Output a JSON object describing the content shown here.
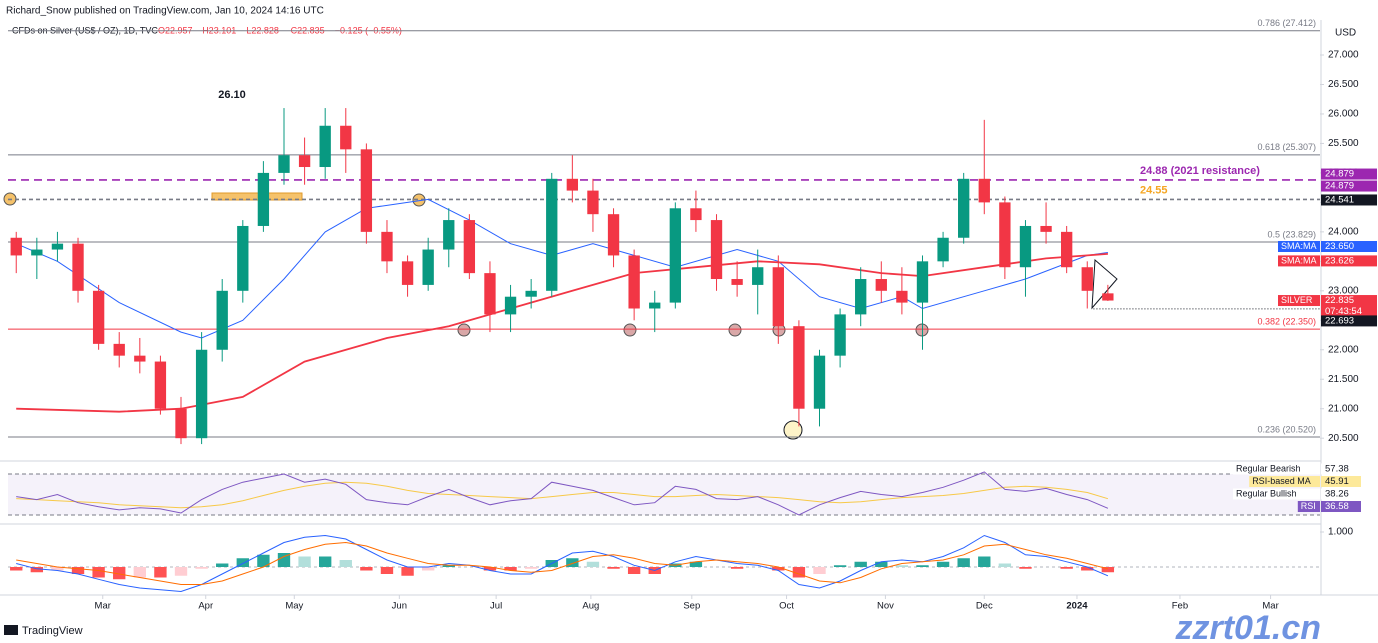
{
  "chart_data": {
    "type": "candlestick",
    "header": {
      "publisher": "Richard_Snow published on TradingView.com, Jan 10, 2024 14:16 UTC",
      "symbol": "CFDs on Silver (US$ / OZ), 1D, TVC",
      "ohlc": [
        "O22.957",
        "H23.101",
        "L22.828",
        "C22.835",
        "−0.125 (−0.55%)"
      ]
    },
    "currency": "USD",
    "footer": "TradingView",
    "watermark": "zzrt01.cn",
    "annotation": "26.10",
    "xlim": [
      -0.4,
      63.3
    ],
    "xticks": [
      {
        "value": 4.2,
        "label": "Mar"
      },
      {
        "value": 9.2,
        "label": "Apr"
      },
      {
        "value": 13.5,
        "label": "May"
      },
      {
        "value": 18.6,
        "label": "Jun"
      },
      {
        "value": 23.3,
        "label": "Jul"
      },
      {
        "value": 27.9,
        "label": "Aug"
      },
      {
        "value": 32.8,
        "label": "Sep"
      },
      {
        "value": 37.4,
        "label": "Oct"
      },
      {
        "value": 42.2,
        "label": "Nov"
      },
      {
        "value": 47.0,
        "label": "Dec"
      },
      {
        "value": 51.5,
        "label": "2024"
      },
      {
        "value": 56.5,
        "label": "Feb"
      },
      {
        "value": 60.9,
        "label": "Mar"
      }
    ],
    "ylim": [
      20.13,
      27.56
    ],
    "yticks": [
      {
        "value": 20.5,
        "label": "20.500"
      },
      {
        "value": 21,
        "label": "21.000"
      },
      {
        "value": 21.5,
        "label": "21.500"
      },
      {
        "value": 22,
        "label": "22.000"
      },
      {
        "value": 22.5,
        "label": "22.500"
      },
      {
        "value": 23,
        "label": "23.000"
      },
      {
        "value": 23.5,
        "label": "23.500"
      },
      {
        "value": 24,
        "label": "24.000"
      },
      {
        "value": 24.5,
        "label": "24.500"
      },
      {
        "value": 25,
        "label": "25.000"
      },
      {
        "value": 25.5,
        "label": "25.500"
      },
      {
        "value": 26,
        "label": "26.000"
      },
      {
        "value": 26.5,
        "label": "26.500"
      },
      {
        "value": 27,
        "label": "27.000"
      }
    ],
    "up_color": "#089981",
    "down_color": "#f23645",
    "open": [
      23.9,
      23.6,
      23.7,
      23.8,
      23.0,
      22.1,
      21.9,
      21.8,
      21.0,
      20.5,
      22.0,
      23.0,
      24.1,
      25.0,
      25.3,
      25.1,
      25.8,
      25.4,
      24.0,
      23.5,
      23.1,
      23.7,
      24.2,
      23.3,
      22.6,
      22.9,
      23.0,
      24.9,
      24.7,
      24.3,
      23.6,
      22.7,
      22.8,
      24.4,
      24.2,
      23.2,
      23.1,
      23.4,
      22.4,
      21.0,
      21.9,
      22.6,
      23.2,
      23.0,
      22.8,
      23.5,
      23.9,
      24.9,
      24.5,
      23.4,
      24.1,
      24.0,
      23.4,
      22.957
    ],
    "high": [
      24.0,
      23.9,
      24.0,
      23.9,
      23.1,
      22.3,
      22.2,
      21.9,
      21.2,
      22.3,
      23.2,
      24.2,
      25.2,
      26.1,
      25.6,
      26.1,
      26.1,
      25.5,
      24.2,
      23.6,
      23.9,
      24.4,
      24.3,
      23.5,
      23.1,
      23.2,
      25.0,
      25.3,
      24.9,
      24.4,
      23.7,
      23.0,
      24.5,
      24.7,
      24.3,
      23.5,
      23.7,
      23.6,
      22.5,
      22.0,
      22.7,
      23.4,
      23.5,
      23.4,
      23.6,
      24.0,
      25.0,
      25.9,
      24.6,
      24.2,
      24.5,
      24.1,
      23.5,
      23.101
    ],
    "low": [
      23.3,
      23.2,
      23.5,
      22.8,
      22.0,
      21.7,
      21.6,
      20.9,
      20.4,
      20.4,
      21.8,
      22.8,
      24.0,
      24.8,
      24.8,
      24.9,
      25.0,
      23.8,
      23.3,
      22.9,
      23.0,
      23.4,
      23.2,
      22.3,
      22.3,
      22.7,
      22.9,
      24.5,
      24.0,
      23.4,
      22.5,
      22.3,
      22.7,
      24.0,
      23.0,
      22.9,
      22.6,
      22.1,
      20.7,
      20.7,
      21.7,
      22.4,
      22.8,
      22.6,
      22.0,
      23.4,
      23.8,
      24.3,
      23.2,
      22.9,
      23.8,
      23.3,
      22.7,
      22.828
    ],
    "close": [
      23.6,
      23.7,
      23.8,
      23.0,
      22.1,
      21.9,
      21.8,
      21.0,
      20.5,
      22.0,
      23.0,
      24.1,
      25.0,
      25.3,
      25.1,
      25.8,
      25.4,
      24.0,
      23.5,
      23.1,
      23.7,
      24.2,
      23.3,
      22.6,
      22.9,
      23.0,
      24.9,
      24.7,
      24.3,
      23.6,
      22.7,
      22.8,
      24.4,
      24.2,
      23.2,
      23.1,
      23.4,
      22.4,
      21.0,
      21.9,
      22.6,
      23.2,
      23.0,
      22.8,
      23.5,
      23.9,
      24.9,
      24.5,
      23.4,
      24.1,
      24.0,
      23.4,
      23.0,
      22.835
    ],
    "lines": [
      {
        "name": "SMA 50",
        "color": "#2962ff",
        "x": [
          0,
          2,
          5,
          8,
          9,
          11,
          13,
          15,
          17,
          19,
          20,
          22,
          24,
          26,
          28,
          30,
          32,
          35,
          37,
          39,
          41,
          43,
          44,
          47,
          49,
          52,
          53
        ],
        "values": [
          23.8,
          23.5,
          22.8,
          22.3,
          22.2,
          22.5,
          23.2,
          24.0,
          24.4,
          24.5,
          24.55,
          24.2,
          23.8,
          23.6,
          23.8,
          23.6,
          23.4,
          23.7,
          23.5,
          22.9,
          22.7,
          22.9,
          22.7,
          23.0,
          23.2,
          23.6,
          23.65
        ]
      },
      {
        "name": "SMA 200",
        "color": "#f23645",
        "x": [
          0,
          5,
          8,
          11,
          14,
          18,
          21,
          24,
          27,
          30,
          33,
          36,
          39,
          42,
          44,
          47,
          50,
          53
        ],
        "values": [
          21.0,
          20.95,
          21.0,
          21.2,
          21.8,
          22.2,
          22.4,
          22.7,
          23.0,
          23.3,
          23.4,
          23.5,
          23.45,
          23.3,
          23.25,
          23.4,
          23.55,
          23.626
        ]
      }
    ],
    "levels": [
      {
        "value": 27.412,
        "label": "0.786 (27.412)",
        "color": "#787b86",
        "dash": "none"
      },
      {
        "value": 25.307,
        "label": "0.618 (25.307)",
        "color": "#787b86",
        "dash": "none"
      },
      {
        "value": 24.88,
        "label": "24.88 (2021 resistance)",
        "color": "#9c27b0",
        "dash": "8 5",
        "big": true
      },
      {
        "value": 24.55,
        "label": "24.55",
        "color": "#f5a623",
        "dash": "4 3",
        "big": true,
        "line_color": "#787b86"
      },
      {
        "value": 23.829,
        "label": "0.5 (23.829)",
        "color": "#787b86",
        "dash": "none"
      },
      {
        "value": 22.693,
        "label": "22.693",
        "color": "#131722",
        "dash": "1 2",
        "from": 52.3
      },
      {
        "value": 22.35,
        "label": "0.382 (22.350)",
        "color": "#f23645",
        "dash": "none"
      },
      {
        "value": 20.52,
        "label": "0.236 (20.520)",
        "color": "#787b86",
        "dash": "none"
      }
    ],
    "tags": [
      {
        "value": 24.879,
        "label": "24.879",
        "color": "#9c27b0",
        "offset": -6
      },
      {
        "value": 24.879,
        "label": "24.879",
        "color": "#9c27b0",
        "offset": 6
      },
      {
        "value": 24.541,
        "label": "24.541",
        "color": "#131722",
        "offset": 0
      },
      {
        "value": 23.65,
        "title": "SMA:MA",
        "label": "23.650",
        "color": "#2962ff",
        "offset": -6
      },
      {
        "value": 23.626,
        "title": "SMA:MA",
        "label": "23.626",
        "color": "#f23645",
        "offset": 7
      },
      {
        "value": 22.835,
        "title": "SILVER",
        "label": "22.835",
        "sub": "07:43:54",
        "color": "#f23645",
        "offset": 0
      },
      {
        "value": 22.693,
        "label": "22.693",
        "color": "#131722",
        "offset": 12
      }
    ],
    "rsi": {
      "ylim": [
        23.2,
        81.7
      ],
      "bands": [
        70,
        30
      ],
      "values": [
        48,
        45,
        50,
        42,
        38,
        35,
        37,
        36,
        32,
        45,
        55,
        62,
        66,
        70,
        62,
        65,
        60,
        45,
        42,
        40,
        48,
        55,
        47,
        40,
        44,
        46,
        62,
        58,
        54,
        47,
        40,
        42,
        58,
        55,
        46,
        45,
        48,
        40,
        30,
        40,
        47,
        53,
        50,
        48,
        52,
        57,
        64,
        72,
        55,
        53,
        56,
        50,
        45,
        36.58
      ],
      "ma": [
        46,
        45,
        44,
        43,
        42,
        40,
        39,
        38,
        37,
        38,
        40,
        44,
        49,
        54,
        58,
        61,
        62,
        61,
        58,
        54,
        51,
        50,
        49,
        48,
        47,
        46,
        48,
        50,
        52,
        52,
        50,
        48,
        48,
        49,
        50,
        49,
        48,
        47,
        45,
        43,
        42,
        43,
        45,
        47,
        48,
        49,
        51,
        54,
        57,
        58,
        57,
        55,
        52,
        45.91
      ],
      "tags": [
        {
          "title": "Regular Bearish",
          "value": 57.38,
          "label": "57.38",
          "color": "#ffffff"
        },
        {
          "title": "RSI-based MA",
          "value": 45.91,
          "label": "45.91",
          "color": "#fde99a"
        },
        {
          "title": "Regular Bullish",
          "value": 38.26,
          "label": "38.26",
          "color": "#ffffff"
        },
        {
          "title": "RSI",
          "value": 36.58,
          "label": "36.58",
          "color": "#7e57c2"
        }
      ]
    },
    "macd": {
      "ylim": [
        -0.8,
        1.2
      ],
      "yticks": [
        {
          "value": 1,
          "label": "1.000"
        }
      ],
      "histogram": [
        -0.1,
        -0.15,
        -0.1,
        -0.2,
        -0.3,
        -0.35,
        -0.3,
        -0.3,
        -0.25,
        -0.05,
        0.1,
        0.25,
        0.35,
        0.4,
        0.3,
        0.3,
        0.2,
        -0.1,
        -0.2,
        -0.25,
        -0.1,
        0.05,
        0,
        -0.1,
        -0.1,
        -0.05,
        0.2,
        0.25,
        0.15,
        -0.05,
        -0.2,
        -0.2,
        0.1,
        0.15,
        0,
        -0.05,
        0,
        -0.1,
        -0.3,
        -0.2,
        0.05,
        0.15,
        0.15,
        0.05,
        0.05,
        0.15,
        0.25,
        0.3,
        0.1,
        -0.05,
        0,
        -0.05,
        -0.1,
        -0.15
      ],
      "macd": [
        0.1,
        -0.05,
        -0.1,
        -0.2,
        -0.35,
        -0.5,
        -0.6,
        -0.65,
        -0.7,
        -0.5,
        -0.2,
        0.1,
        0.4,
        0.7,
        0.85,
        0.9,
        0.8,
        0.5,
        0.2,
        0,
        0,
        0.1,
        0.05,
        -0.1,
        -0.2,
        -0.2,
        0.1,
        0.4,
        0.45,
        0.3,
        0.05,
        -0.1,
        0.15,
        0.3,
        0.2,
        0.1,
        0.05,
        -0.1,
        -0.5,
        -0.6,
        -0.4,
        -0.1,
        0.15,
        0.2,
        0.15,
        0.3,
        0.55,
        0.9,
        0.7,
        0.35,
        0.3,
        0.15,
        0,
        -0.25
      ],
      "signal": [
        0.2,
        0.1,
        0,
        -0.05,
        -0.1,
        -0.2,
        -0.3,
        -0.4,
        -0.5,
        -0.5,
        -0.4,
        -0.2,
        0,
        0.3,
        0.5,
        0.65,
        0.7,
        0.6,
        0.4,
        0.25,
        0.1,
        0.05,
        0.05,
        0,
        -0.1,
        -0.15,
        -0.1,
        0.1,
        0.3,
        0.35,
        0.25,
        0.1,
        0.05,
        0.15,
        0.2,
        0.15,
        0.1,
        0,
        -0.2,
        -0.4,
        -0.45,
        -0.3,
        -0.05,
        0.1,
        0.15,
        0.2,
        0.35,
        0.6,
        0.65,
        0.5,
        0.35,
        0.25,
        0.1,
        -0.05
      ]
    }
  }
}
